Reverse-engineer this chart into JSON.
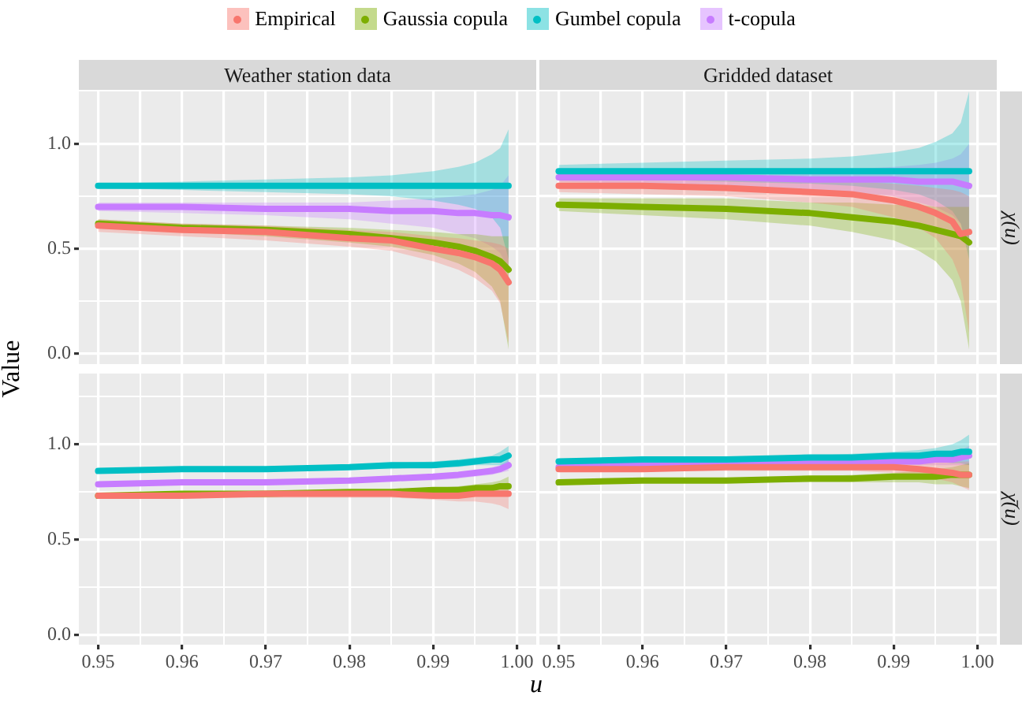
{
  "chart_data": [
    {
      "type": "line",
      "title": "Weather station data",
      "ylabel": "Value",
      "legend": "top",
      "grid": true,
      "marker": "none",
      "line_style": "solid",
      "tick_labels": "y",
      "xlim": [
        0.9477,
        1.0023
      ],
      "ylim": [
        -0.05,
        1.25
      ],
      "xticks": [
        0.95,
        0.955,
        0.96,
        0.965,
        0.97,
        0.975,
        0.98,
        0.985,
        0.99,
        0.995,
        1
      ],
      "yticks": [
        {
          "value": 0,
          "label": "0.0"
        },
        {
          "value": 0.25,
          "label": null
        },
        {
          "value": 0.5,
          "label": "0.5"
        },
        {
          "value": 0.75,
          "label": null
        },
        {
          "value": 1,
          "label": "1.0"
        }
      ],
      "x": [
        0.95,
        0.96,
        0.97,
        0.98,
        0.985,
        0.99,
        0.993,
        0.995,
        0.997,
        0.998,
        0.999
      ],
      "series": [
        {
          "name": "Empirical",
          "color": "#f8766d",
          "values": [
            0.61,
            0.59,
            0.58,
            0.55,
            0.54,
            0.5,
            0.48,
            0.46,
            0.43,
            0.4,
            0.34
          ],
          "lower": [
            0.58,
            0.56,
            0.54,
            0.51,
            0.49,
            0.44,
            0.4,
            0.36,
            0.3,
            0.24,
            0.05
          ],
          "upper": [
            0.64,
            0.62,
            0.61,
            0.59,
            0.58,
            0.56,
            0.55,
            0.54,
            0.53,
            0.52,
            0.5
          ]
        },
        {
          "name": "Gaussia copula",
          "color": "#7cae00",
          "values": [
            0.62,
            0.6,
            0.59,
            0.57,
            0.55,
            0.53,
            0.51,
            0.49,
            0.46,
            0.44,
            0.4
          ],
          "lower": [
            0.6,
            0.58,
            0.56,
            0.53,
            0.51,
            0.47,
            0.43,
            0.39,
            0.32,
            0.25,
            0.02
          ],
          "upper": [
            0.64,
            0.62,
            0.61,
            0.6,
            0.59,
            0.58,
            0.57,
            0.57,
            0.56,
            0.56,
            0.56
          ]
        },
        {
          "name": "Gumbel copula",
          "color": "#00bfc4",
          "values": [
            0.8,
            0.8,
            0.8,
            0.8,
            0.8,
            0.8,
            0.8,
            0.8,
            0.8,
            0.8,
            0.8
          ],
          "lower": [
            0.79,
            0.78,
            0.77,
            0.76,
            0.75,
            0.73,
            0.71,
            0.69,
            0.65,
            0.6,
            0.45
          ],
          "upper": [
            0.81,
            0.82,
            0.83,
            0.84,
            0.85,
            0.87,
            0.89,
            0.91,
            0.95,
            0.98,
            1.07
          ]
        },
        {
          "name": "t-copula",
          "color": "#c77cff",
          "values": [
            0.7,
            0.7,
            0.69,
            0.69,
            0.68,
            0.68,
            0.67,
            0.67,
            0.66,
            0.66,
            0.65
          ],
          "lower": [
            0.68,
            0.67,
            0.66,
            0.64,
            0.62,
            0.6,
            0.57,
            0.55,
            0.51,
            0.48,
            0.4
          ],
          "upper": [
            0.72,
            0.72,
            0.72,
            0.72,
            0.73,
            0.74,
            0.75,
            0.76,
            0.78,
            0.8,
            0.85
          ]
        }
      ]
    },
    {
      "type": "line",
      "title": "Gridded dataset",
      "annotations": [
        "χ(u)"
      ],
      "grid": true,
      "marker": "none",
      "line_style": "solid",
      "tick_labels": false,
      "xlim": [
        0.9477,
        1.0023
      ],
      "ylim": [
        -0.05,
        1.25
      ],
      "xticks": [
        0.95,
        0.955,
        0.96,
        0.965,
        0.97,
        0.975,
        0.98,
        0.985,
        0.99,
        0.995,
        1
      ],
      "yticks": [
        0,
        0.25,
        0.5,
        0.75,
        1
      ],
      "x": [
        0.95,
        0.96,
        0.97,
        0.98,
        0.985,
        0.99,
        0.993,
        0.995,
        0.997,
        0.998,
        0.999
      ],
      "series": [
        {
          "color": "#f8766d",
          "values": [
            0.8,
            0.8,
            0.79,
            0.77,
            0.76,
            0.73,
            0.7,
            0.67,
            0.63,
            0.57,
            0.58
          ],
          "lower": [
            0.77,
            0.76,
            0.75,
            0.72,
            0.7,
            0.65,
            0.6,
            0.55,
            0.45,
            0.35,
            0.1
          ],
          "upper": [
            0.83,
            0.83,
            0.83,
            0.82,
            0.82,
            0.81,
            0.8,
            0.79,
            0.78,
            0.77,
            0.75
          ]
        },
        {
          "color": "#7cae00",
          "values": [
            0.71,
            0.7,
            0.69,
            0.67,
            0.65,
            0.63,
            0.61,
            0.59,
            0.57,
            0.56,
            0.53
          ],
          "lower": [
            0.68,
            0.66,
            0.64,
            0.61,
            0.58,
            0.54,
            0.49,
            0.44,
            0.35,
            0.25,
            0.02
          ],
          "upper": [
            0.74,
            0.74,
            0.74,
            0.72,
            0.72,
            0.71,
            0.71,
            0.7,
            0.7,
            0.7,
            0.7
          ]
        },
        {
          "color": "#00bfc4",
          "values": [
            0.87,
            0.87,
            0.87,
            0.87,
            0.87,
            0.87,
            0.87,
            0.87,
            0.87,
            0.87,
            0.87
          ],
          "lower": [
            0.84,
            0.83,
            0.82,
            0.81,
            0.8,
            0.78,
            0.76,
            0.73,
            0.68,
            0.62,
            0.45
          ],
          "upper": [
            0.9,
            0.91,
            0.92,
            0.93,
            0.94,
            0.96,
            0.98,
            1.01,
            1.05,
            1.1,
            1.25
          ]
        },
        {
          "color": "#c77cff",
          "values": [
            0.84,
            0.84,
            0.84,
            0.83,
            0.83,
            0.83,
            0.82,
            0.82,
            0.82,
            0.81,
            0.8
          ],
          "lower": [
            0.82,
            0.81,
            0.8,
            0.78,
            0.77,
            0.75,
            0.72,
            0.7,
            0.66,
            0.62,
            0.5
          ],
          "upper": [
            0.86,
            0.86,
            0.87,
            0.87,
            0.88,
            0.89,
            0.9,
            0.91,
            0.93,
            0.95,
            1.0
          ]
        }
      ]
    },
    {
      "type": "line",
      "xlabel": "u",
      "grid": true,
      "marker": "none",
      "line_style": "solid",
      "xlim": [
        0.9477,
        1.0023
      ],
      "ylim": [
        -0.05,
        1.37
      ],
      "xticks": [
        {
          "value": 0.95,
          "label": "0.95"
        },
        {
          "value": 0.955,
          "label": null
        },
        {
          "value": 0.96,
          "label": "0.96"
        },
        {
          "value": 0.965,
          "label": null
        },
        {
          "value": 0.97,
          "label": "0.97"
        },
        {
          "value": 0.975,
          "label": null
        },
        {
          "value": 0.98,
          "label": "0.98"
        },
        {
          "value": 0.985,
          "label": null
        },
        {
          "value": 0.99,
          "label": "0.99"
        },
        {
          "value": 0.995,
          "label": null
        },
        {
          "value": 1,
          "label": "1.00"
        }
      ],
      "yticks": [
        {
          "value": 0,
          "label": "0.0"
        },
        {
          "value": 0.25,
          "label": null
        },
        {
          "value": 0.5,
          "label": "0.5"
        },
        {
          "value": 0.75,
          "label": null
        },
        {
          "value": 1,
          "label": "1.0"
        },
        {
          "value": 1.25,
          "label": null
        }
      ],
      "x": [
        0.95,
        0.96,
        0.97,
        0.98,
        0.985,
        0.99,
        0.993,
        0.995,
        0.997,
        0.998,
        0.999
      ],
      "series": [
        {
          "color": "#f8766d",
          "values": [
            0.73,
            0.73,
            0.74,
            0.74,
            0.74,
            0.73,
            0.73,
            0.74,
            0.74,
            0.74,
            0.74
          ],
          "lower": [
            0.72,
            0.72,
            0.72,
            0.72,
            0.72,
            0.71,
            0.7,
            0.7,
            0.69,
            0.68,
            0.66
          ],
          "upper": [
            0.74,
            0.74,
            0.75,
            0.76,
            0.76,
            0.75,
            0.76,
            0.77,
            0.78,
            0.79,
            0.8
          ]
        },
        {
          "color": "#7cae00",
          "values": [
            0.73,
            0.74,
            0.74,
            0.75,
            0.75,
            0.76,
            0.76,
            0.77,
            0.77,
            0.78,
            0.78
          ],
          "lower": [
            0.72,
            0.73,
            0.73,
            0.74,
            0.74,
            0.74,
            0.74,
            0.74,
            0.74,
            0.74,
            0.73
          ],
          "upper": [
            0.74,
            0.75,
            0.75,
            0.76,
            0.76,
            0.77,
            0.78,
            0.79,
            0.8,
            0.81,
            0.83
          ]
        },
        {
          "color": "#00bfc4",
          "values": [
            0.86,
            0.87,
            0.87,
            0.88,
            0.89,
            0.89,
            0.9,
            0.91,
            0.92,
            0.92,
            0.94
          ],
          "lower": [
            0.85,
            0.86,
            0.86,
            0.87,
            0.87,
            0.88,
            0.88,
            0.89,
            0.89,
            0.89,
            0.89
          ],
          "upper": [
            0.87,
            0.88,
            0.88,
            0.89,
            0.9,
            0.91,
            0.92,
            0.93,
            0.94,
            0.96,
            0.99
          ]
        },
        {
          "color": "#c77cff",
          "values": [
            0.79,
            0.8,
            0.8,
            0.81,
            0.82,
            0.83,
            0.84,
            0.85,
            0.86,
            0.87,
            0.89
          ],
          "lower": [
            0.78,
            0.79,
            0.79,
            0.8,
            0.81,
            0.81,
            0.82,
            0.83,
            0.84,
            0.85,
            0.86
          ],
          "upper": [
            0.8,
            0.81,
            0.81,
            0.82,
            0.83,
            0.84,
            0.85,
            0.86,
            0.88,
            0.89,
            0.92
          ]
        }
      ]
    },
    {
      "type": "line",
      "annotations": [
        "χ̄(u)"
      ],
      "grid": true,
      "marker": "none",
      "line_style": "solid",
      "tick_labels": "x",
      "xlim": [
        0.9477,
        1.0023
      ],
      "ylim": [
        -0.05,
        1.37
      ],
      "xticks": [
        {
          "value": 0.95,
          "label": "0.95"
        },
        {
          "value": 0.955,
          "label": null
        },
        {
          "value": 0.96,
          "label": "0.96"
        },
        {
          "value": 0.965,
          "label": null
        },
        {
          "value": 0.97,
          "label": "0.97"
        },
        {
          "value": 0.975,
          "label": null
        },
        {
          "value": 0.98,
          "label": "0.98"
        },
        {
          "value": 0.985,
          "label": null
        },
        {
          "value": 0.99,
          "label": "0.99"
        },
        {
          "value": 0.995,
          "label": null
        },
        {
          "value": 1,
          "label": "1.00"
        }
      ],
      "yticks": [
        0,
        0.25,
        0.5,
        0.75,
        1,
        1.25
      ],
      "x": [
        0.95,
        0.96,
        0.97,
        0.98,
        0.985,
        0.99,
        0.993,
        0.995,
        0.997,
        0.998,
        0.999
      ],
      "series": [
        {
          "color": "#f8766d",
          "values": [
            0.87,
            0.87,
            0.88,
            0.88,
            0.88,
            0.88,
            0.87,
            0.86,
            0.85,
            0.84,
            0.84
          ],
          "lower": [
            0.86,
            0.86,
            0.86,
            0.86,
            0.86,
            0.85,
            0.84,
            0.82,
            0.8,
            0.78,
            0.76
          ],
          "upper": [
            0.88,
            0.88,
            0.89,
            0.9,
            0.9,
            0.91,
            0.91,
            0.91,
            0.91,
            0.91,
            0.91
          ]
        },
        {
          "color": "#7cae00",
          "values": [
            0.8,
            0.81,
            0.81,
            0.82,
            0.82,
            0.83,
            0.83,
            0.83,
            0.84,
            0.84,
            0.84
          ],
          "lower": [
            0.79,
            0.8,
            0.8,
            0.8,
            0.8,
            0.8,
            0.8,
            0.79,
            0.79,
            0.78,
            0.77
          ],
          "upper": [
            0.81,
            0.82,
            0.82,
            0.83,
            0.84,
            0.85,
            0.86,
            0.87,
            0.88,
            0.89,
            0.9
          ]
        },
        {
          "color": "#00bfc4",
          "values": [
            0.91,
            0.92,
            0.92,
            0.93,
            0.93,
            0.94,
            0.94,
            0.95,
            0.95,
            0.96,
            0.96
          ],
          "lower": [
            0.9,
            0.9,
            0.91,
            0.91,
            0.91,
            0.91,
            0.91,
            0.91,
            0.9,
            0.9,
            0.89
          ],
          "upper": [
            0.92,
            0.93,
            0.93,
            0.94,
            0.95,
            0.96,
            0.97,
            0.98,
            1.0,
            1.02,
            1.05
          ]
        },
        {
          "color": "#c77cff",
          "values": [
            0.88,
            0.89,
            0.89,
            0.9,
            0.9,
            0.91,
            0.91,
            0.92,
            0.92,
            0.93,
            0.94
          ],
          "lower": [
            0.87,
            0.88,
            0.88,
            0.88,
            0.89,
            0.89,
            0.89,
            0.89,
            0.89,
            0.89,
            0.89
          ],
          "upper": [
            0.89,
            0.9,
            0.9,
            0.91,
            0.92,
            0.93,
            0.94,
            0.95,
            0.96,
            0.97,
            0.99
          ]
        }
      ]
    }
  ]
}
